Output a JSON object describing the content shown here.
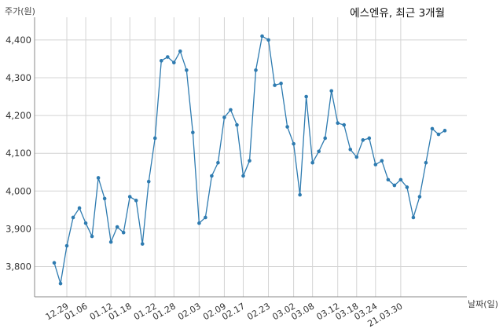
{
  "chart_data": {
    "type": "line",
    "title": "에스엔유, 최근 3개월",
    "ylabel": "주가(원)",
    "xlabel": "날짜(일)",
    "ylim": [
      3720,
      4460
    ],
    "yticks": [
      3800,
      3900,
      4000,
      4100,
      4200,
      4300,
      4400
    ],
    "ytick_labels": [
      "3,800",
      "3,900",
      "4,000",
      "4,100",
      "4,200",
      "4,300",
      "4,400"
    ],
    "grid": true,
    "x_tick_labels": [
      {
        "label": "12.29",
        "index": 2
      },
      {
        "label": "01.06",
        "index": 5
      },
      {
        "label": "01.12",
        "index": 9
      },
      {
        "label": "01.18",
        "index": 12
      },
      {
        "label": "01.22",
        "index": 16
      },
      {
        "label": "01.28",
        "index": 19
      },
      {
        "label": "02.03",
        "index": 23
      },
      {
        "label": "02.09",
        "index": 27
      },
      {
        "label": "02.17",
        "index": 30
      },
      {
        "label": "02.23",
        "index": 34
      },
      {
        "label": "03.02",
        "index": 38
      },
      {
        "label": "03.08",
        "index": 41
      },
      {
        "label": "03.12",
        "index": 45
      },
      {
        "label": "03.18",
        "index": 48
      },
      {
        "label": "03.24",
        "index": 51
      },
      {
        "label": "21.03.30",
        "index": 55
      }
    ],
    "series": [
      {
        "color": "#2e7bb0",
        "values": [
          3810,
          3755,
          3855,
          3930,
          3955,
          3915,
          3880,
          4035,
          3980,
          3865,
          3905,
          3890,
          3985,
          3975,
          3860,
          4025,
          4140,
          4345,
          4355,
          4340,
          4370,
          4320,
          4155,
          3915,
          3930,
          4040,
          4075,
          4195,
          4215,
          4175,
          4040,
          4080,
          4320,
          4410,
          4400,
          4280,
          4285,
          4170,
          4125,
          3990,
          4250,
          4075,
          4105,
          4140,
          4265,
          4180,
          4175,
          4110,
          4090,
          4135,
          4140,
          4070,
          4080,
          4030,
          4015,
          4030,
          4010,
          3930,
          3985,
          4075,
          4165,
          4150,
          4160
        ]
      }
    ]
  }
}
